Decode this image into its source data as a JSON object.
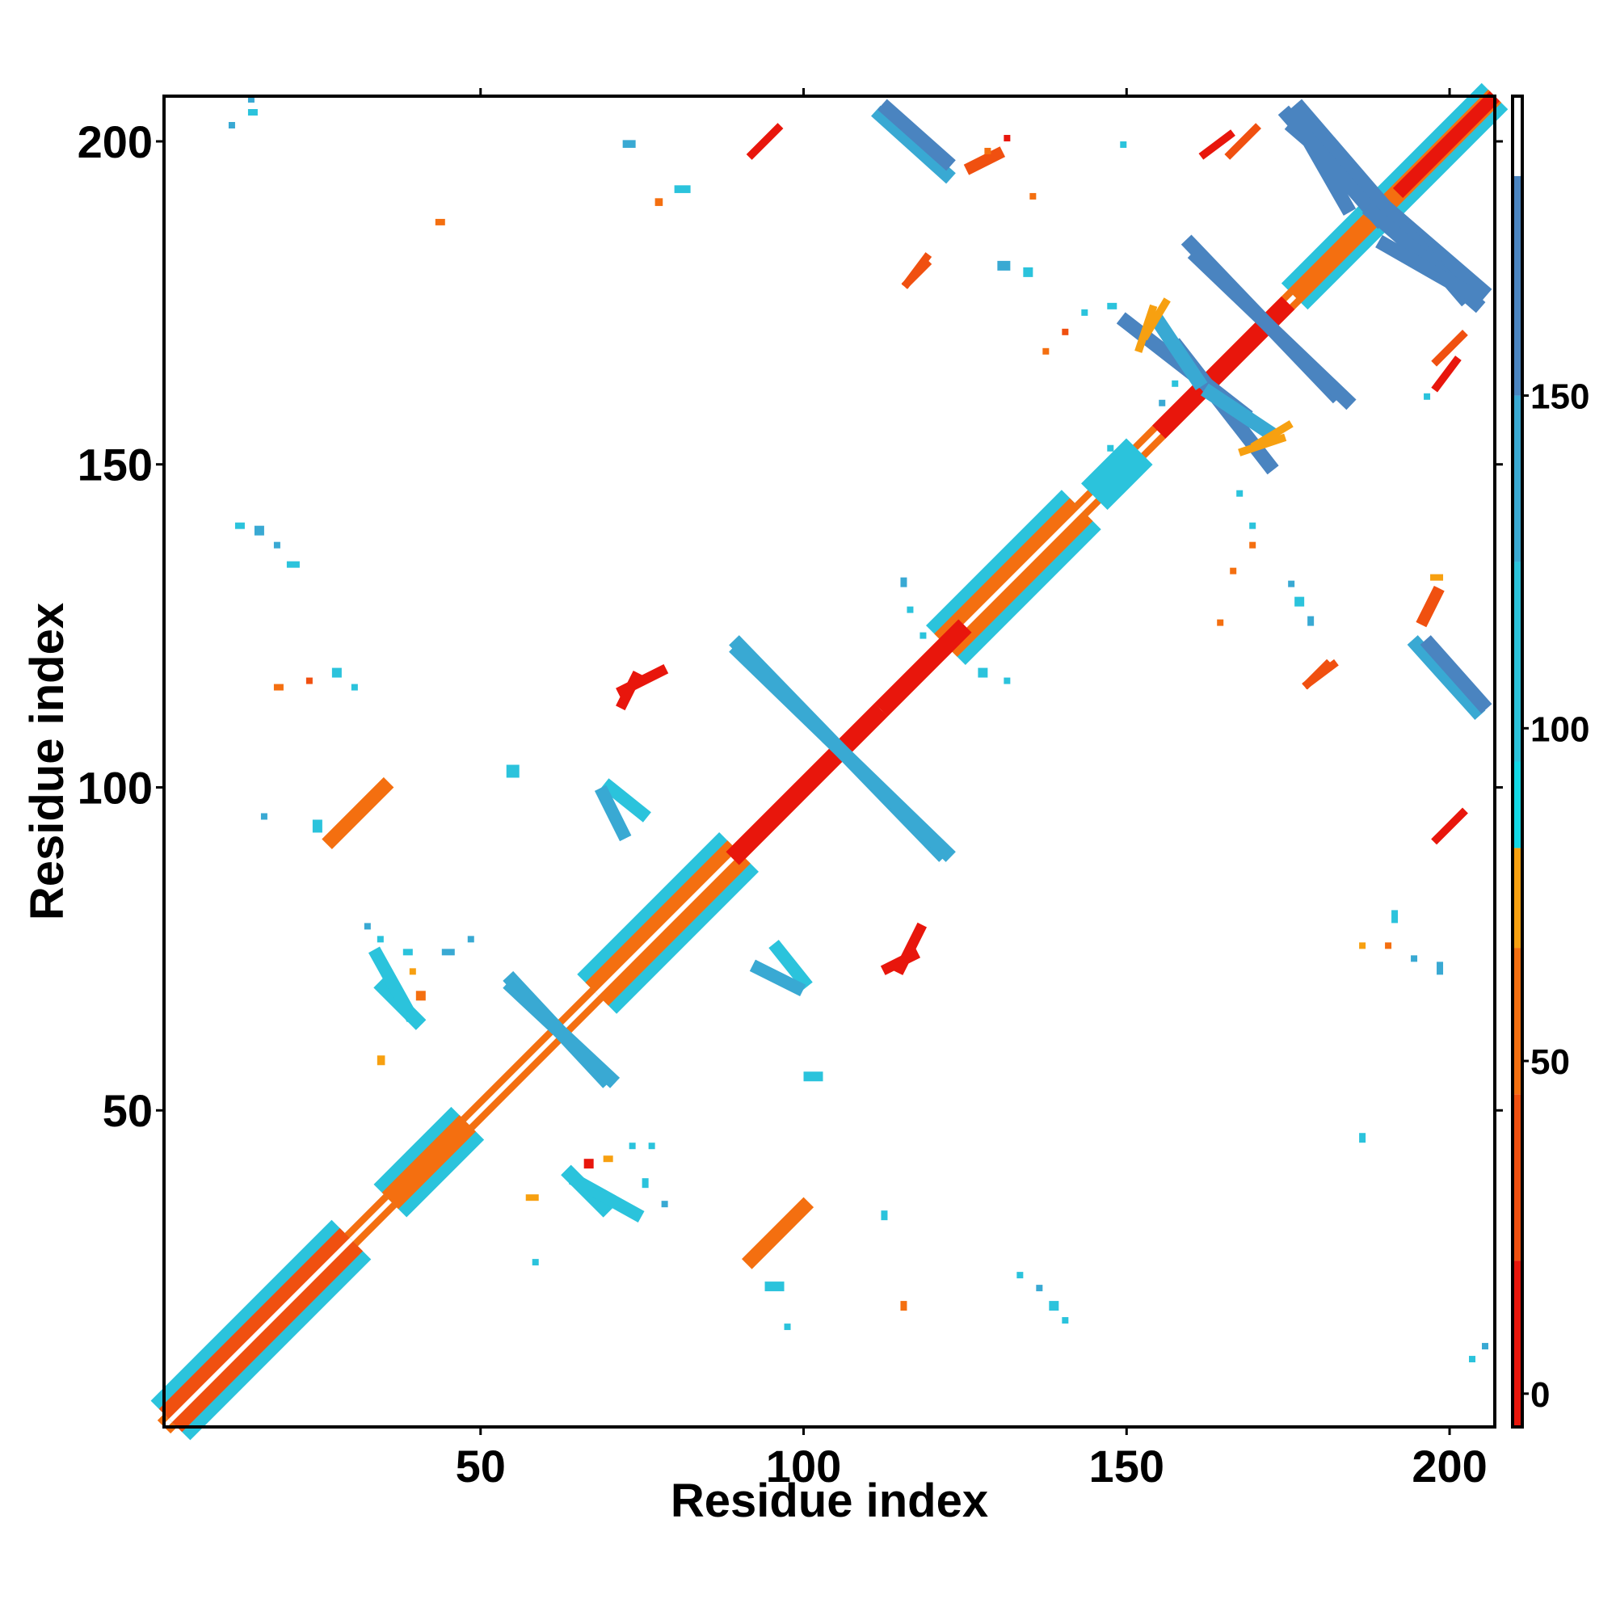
{
  "chart_data": {
    "type": "heatmap",
    "title": "",
    "xlabel": "Residue index",
    "ylabel": "Residue index",
    "xlim": [
      1,
      207
    ],
    "ylim": [
      1,
      207
    ],
    "x_ticks": [
      50,
      100,
      150,
      200
    ],
    "y_ticks": [
      50,
      100,
      150,
      200
    ],
    "colorbar": {
      "ticks": [
        0,
        50,
        100,
        150
      ],
      "range": [
        -5,
        195
      ],
      "bands": [
        {
          "from": -5,
          "to": 20,
          "color": "#e8160c"
        },
        {
          "from": 20,
          "to": 45,
          "color": "#f05010"
        },
        {
          "from": 45,
          "to": 67,
          "color": "#f46f10"
        },
        {
          "from": 67,
          "to": 82,
          "color": "#f7a010"
        },
        {
          "from": 82,
          "to": 95,
          "color": "#12d8e6"
        },
        {
          "from": 95,
          "to": 125,
          "color": "#2bc3dc"
        },
        {
          "from": 125,
          "to": 150,
          "color": "#39a9d3"
        },
        {
          "from": 150,
          "to": 183,
          "color": "#4a84c0"
        },
        {
          "from": 183,
          "to": 195,
          "color": "#ffffff"
        }
      ]
    },
    "features": [
      {
        "kind": "diag",
        "start": 1,
        "end": 207,
        "width": 4,
        "color": "#f46f10"
      },
      {
        "kind": "diag",
        "start": 1,
        "end": 207,
        "width": 1,
        "color": "#ffffff"
      },
      {
        "kind": "diag",
        "start": 2,
        "end": 30,
        "width": 12,
        "color": "#2bc3dc"
      },
      {
        "kind": "diag",
        "start": 2,
        "end": 30,
        "width": 7,
        "color": "#f05010"
      },
      {
        "kind": "diag",
        "start": 2,
        "end": 30,
        "width": 1,
        "color": "#ffffff"
      },
      {
        "kind": "diag",
        "start": 36,
        "end": 48,
        "width": 10,
        "color": "#2bc3dc"
      },
      {
        "kind": "diag",
        "start": 36,
        "end": 48,
        "width": 5,
        "color": "#f46f10"
      },
      {
        "kind": "diag",
        "start": 68,
        "end": 90,
        "width": 12,
        "color": "#2bc3dc"
      },
      {
        "kind": "diag",
        "start": 68,
        "end": 90,
        "width": 7,
        "color": "#f46f10"
      },
      {
        "kind": "diag",
        "start": 68,
        "end": 90,
        "width": 1,
        "color": "#ffffff"
      },
      {
        "kind": "diag",
        "start": 89,
        "end": 112,
        "width": 4,
        "color": "#e8160c"
      },
      {
        "kind": "diag",
        "start": 122,
        "end": 143,
        "width": 12,
        "color": "#2bc3dc"
      },
      {
        "kind": "diag",
        "start": 122,
        "end": 143,
        "width": 7,
        "color": "#f46f10"
      },
      {
        "kind": "diag",
        "start": 122,
        "end": 143,
        "width": 1,
        "color": "#ffffff"
      },
      {
        "kind": "diag",
        "start": 112,
        "end": 125,
        "width": 4,
        "color": "#e8160c"
      },
      {
        "kind": "diag",
        "start": 145,
        "end": 152,
        "width": 8,
        "color": "#2bc3dc"
      },
      {
        "kind": "diag",
        "start": 155,
        "end": 175,
        "width": 4,
        "color": "#e8160c"
      },
      {
        "kind": "diag",
        "start": 176,
        "end": 207,
        "width": 8,
        "color": "#2bc3dc"
      },
      {
        "kind": "diag",
        "start": 176,
        "end": 207,
        "width": 4,
        "color": "#f46f10"
      },
      {
        "kind": "diag",
        "start": 192,
        "end": 207,
        "width": 3,
        "color": "#e8160c"
      },
      {
        "kind": "anti",
        "x1": 90,
        "y1": 122,
        "x2": 121,
        "y2": 90,
        "width": 2.2,
        "color": "#39a9d3"
      },
      {
        "kind": "anti",
        "x1": 55,
        "y1": 70,
        "x2": 69,
        "y2": 55,
        "width": 2.2,
        "color": "#39a9d3"
      },
      {
        "kind": "anti",
        "x1": 158,
        "y1": 168,
        "x2": 172,
        "y2": 150,
        "width": 2.2,
        "color": "#4a84c0"
      },
      {
        "kind": "anti",
        "x1": 150,
        "y1": 172,
        "x2": 168,
        "y2": 158,
        "width": 2.2,
        "color": "#4a84c0"
      },
      {
        "kind": "anti",
        "x1": 160,
        "y1": 184,
        "x2": 182,
        "y2": 161,
        "width": 2.2,
        "color": "#4a84c0"
      },
      {
        "kind": "anti",
        "x1": 176,
        "y1": 202,
        "x2": 205,
        "y2": 177,
        "width": 2.2,
        "color": "#4a84c0"
      },
      {
        "kind": "anti",
        "x1": 175,
        "y1": 204,
        "x2": 189,
        "y2": 188,
        "width": 2.2,
        "color": "#4a84c0"
      },
      {
        "kind": "anti",
        "x1": 112,
        "y1": 204,
        "x2": 122,
        "y2": 195,
        "width": 2.2,
        "color": "#39a9d3"
      },
      {
        "kind": "anti",
        "x1": 197,
        "y1": 122,
        "x2": 205,
        "y2": 113,
        "width": 2.2,
        "color": "#4a84c0"
      },
      {
        "kind": "anti",
        "x1": 190,
        "y1": 184,
        "x2": 204,
        "y2": 176,
        "width": 2.2,
        "color": "#4a84c0"
      },
      {
        "kind": "anti",
        "x1": 155,
        "y1": 172,
        "x2": 161,
        "y2": 163,
        "width": 2.2,
        "color": "#39a9d3"
      },
      {
        "kind": "par",
        "x1": 27,
        "y1": 92,
        "x2": 35,
        "y2": 100,
        "width": 2.2,
        "color": "#f46f10"
      },
      {
        "kind": "par",
        "x1": 92,
        "y1": 27,
        "x2": 100,
        "y2": 35,
        "width": 2.2,
        "color": "#f46f10"
      },
      {
        "kind": "par",
        "x1": 35,
        "y1": 69,
        "x2": 40,
        "y2": 64,
        "width": 2.2,
        "color": "#2bc3dc"
      },
      {
        "kind": "par",
        "x1": 64,
        "y1": 40,
        "x2": 69,
        "y2": 35,
        "width": 2.2,
        "color": "#2bc3dc"
      },
      {
        "kind": "par",
        "x1": 70,
        "y1": 100,
        "x2": 75,
        "y2": 96,
        "width": 2,
        "color": "#2bc3dc"
      },
      {
        "kind": "par",
        "x1": 93,
        "y1": 72,
        "x2": 99,
        "y2": 69,
        "width": 2,
        "color": "#39a9d3"
      },
      {
        "kind": "par",
        "x1": 72,
        "y1": 113,
        "x2": 74,
        "y2": 117,
        "width": 1.6,
        "color": "#e8160c"
      },
      {
        "kind": "par",
        "x1": 115,
        "y1": 72,
        "x2": 118,
        "y2": 78,
        "width": 1.6,
        "color": "#e8160c"
      },
      {
        "kind": "par",
        "x1": 92,
        "y1": 198,
        "x2": 96,
        "y2": 202,
        "width": 1.2,
        "color": "#f05010"
      },
      {
        "kind": "par",
        "x1": 198,
        "y1": 92,
        "x2": 202,
        "y2": 96,
        "width": 1.2,
        "color": "#e8160c"
      },
      {
        "kind": "par",
        "x1": 116,
        "y1": 178,
        "x2": 119,
        "y2": 182,
        "width": 1.2,
        "color": "#f05010"
      },
      {
        "kind": "par",
        "x1": 178,
        "y1": 116,
        "x2": 181,
        "y2": 119,
        "width": 1.2,
        "color": "#f05010"
      },
      {
        "kind": "par",
        "x1": 196,
        "y1": 126,
        "x2": 198,
        "y2": 130,
        "width": 1.8,
        "color": "#f05010"
      },
      {
        "kind": "par",
        "x1": 198,
        "y1": 162,
        "x2": 201,
        "y2": 166,
        "width": 1.2,
        "color": "#e8160c"
      },
      {
        "kind": "par",
        "x1": 166,
        "y1": 198,
        "x2": 170,
        "y2": 202,
        "width": 1.2,
        "color": "#f05010"
      },
      {
        "kind": "par",
        "x1": 170,
        "y1": 153,
        "x2": 175,
        "y2": 156,
        "width": 1.2,
        "color": "#f7a010"
      },
      {
        "kind": "par",
        "x1": 152,
        "y1": 168,
        "x2": 154,
        "y2": 174,
        "width": 1.2,
        "color": "#f7a010"
      },
      {
        "kind": "par",
        "x1": 65,
        "y1": 39,
        "x2": 74,
        "y2": 34,
        "width": 2,
        "color": "#2bc3dc"
      },
      {
        "kind": "blob",
        "x": 54,
        "y": 101.5,
        "w": 2,
        "h": 2,
        "color": "#2bc3dc"
      },
      {
        "kind": "blob",
        "x": 100,
        "y": 54.5,
        "w": 3,
        "h": 1.5,
        "color": "#2bc3dc"
      },
      {
        "kind": "blob",
        "x": 43,
        "y": 187,
        "w": 1.5,
        "h": 1,
        "color": "#f46f10"
      },
      {
        "kind": "blob",
        "x": 186,
        "y": 45,
        "w": 1,
        "h": 1.5,
        "color": "#2bc3dc"
      },
      {
        "kind": "blob",
        "x": 34,
        "y": 57,
        "w": 1.2,
        "h": 1.5,
        "color": "#f7a010"
      },
      {
        "kind": "blob",
        "x": 57,
        "y": 36,
        "w": 2,
        "h": 1,
        "color": "#f7a010"
      },
      {
        "kind": "blob",
        "x": 94,
        "y": 22,
        "w": 3,
        "h": 1.5,
        "color": "#2bc3dc"
      },
      {
        "kind": "blob",
        "x": 115,
        "y": 19,
        "w": 1,
        "h": 1.5,
        "color": "#f46f10"
      },
      {
        "kind": "blob",
        "x": 14,
        "y": 204,
        "w": 1.5,
        "h": 1,
        "color": "#2bc3dc"
      },
      {
        "kind": "blob",
        "x": 11,
        "y": 202,
        "w": 1,
        "h": 1,
        "color": "#39a9d3"
      },
      {
        "kind": "blob",
        "x": 72,
        "y": 199,
        "w": 2,
        "h": 1.2,
        "color": "#39a9d3"
      },
      {
        "kind": "blob",
        "x": 80,
        "y": 192,
        "w": 2.5,
        "h": 1.2,
        "color": "#2bc3dc"
      },
      {
        "kind": "blob",
        "x": 77,
        "y": 190,
        "w": 1.2,
        "h": 1.2,
        "color": "#f46f10"
      },
      {
        "kind": "blob",
        "x": 130,
        "y": 180,
        "w": 2,
        "h": 1.5,
        "color": "#39a9d3"
      },
      {
        "kind": "blob",
        "x": 134,
        "y": 179,
        "w": 1.5,
        "h": 1.5,
        "color": "#2bc3dc"
      },
      {
        "kind": "blob",
        "x": 12,
        "y": 140,
        "w": 1.5,
        "h": 1,
        "color": "#2bc3dc"
      },
      {
        "kind": "blob",
        "x": 15,
        "y": 139,
        "w": 1.5,
        "h": 1.5,
        "color": "#39a9d3"
      },
      {
        "kind": "blob",
        "x": 20,
        "y": 134,
        "w": 2,
        "h": 1,
        "color": "#2bc3dc"
      },
      {
        "kind": "blob",
        "x": 18,
        "y": 137,
        "w": 1,
        "h": 1,
        "color": "#39a9d3"
      },
      {
        "kind": "blob",
        "x": 27,
        "y": 117,
        "w": 1.5,
        "h": 1.5,
        "color": "#2bc3dc"
      },
      {
        "kind": "blob",
        "x": 30,
        "y": 115,
        "w": 1,
        "h": 1,
        "color": "#2bc3dc"
      },
      {
        "kind": "blob",
        "x": 18,
        "y": 115,
        "w": 1.5,
        "h": 1,
        "color": "#f46f10"
      },
      {
        "kind": "blob",
        "x": 23,
        "y": 116,
        "w": 1,
        "h": 1,
        "color": "#f05010"
      },
      {
        "kind": "blob",
        "x": 16,
        "y": 95,
        "w": 1,
        "h": 1,
        "color": "#39a9d3"
      },
      {
        "kind": "blob",
        "x": 24,
        "y": 93,
        "w": 1.5,
        "h": 2,
        "color": "#2bc3dc"
      },
      {
        "kind": "blob",
        "x": 32,
        "y": 78,
        "w": 1,
        "h": 1,
        "color": "#39a9d3"
      },
      {
        "kind": "blob",
        "x": 34,
        "y": 76,
        "w": 1,
        "h": 1,
        "color": "#2bc3dc"
      },
      {
        "kind": "blob",
        "x": 44,
        "y": 74,
        "w": 2,
        "h": 1,
        "color": "#39a9d3"
      },
      {
        "kind": "blob",
        "x": 48,
        "y": 76,
        "w": 1,
        "h": 1,
        "color": "#39a9d3"
      },
      {
        "kind": "blob",
        "x": 40,
        "y": 67,
        "w": 1.5,
        "h": 1.5,
        "color": "#f46f10"
      },
      {
        "kind": "blob",
        "x": 39,
        "y": 71,
        "w": 1,
        "h": 1,
        "color": "#f7a010"
      },
      {
        "kind": "blob",
        "x": 38,
        "y": 74,
        "w": 1.5,
        "h": 1,
        "color": "#2bc3dc"
      },
      {
        "kind": "blob",
        "x": 112,
        "y": 33,
        "w": 1,
        "h": 1.5,
        "color": "#2bc3dc"
      },
      {
        "kind": "blob",
        "x": 133,
        "y": 24,
        "w": 1,
        "h": 1,
        "color": "#2bc3dc"
      },
      {
        "kind": "blob",
        "x": 136,
        "y": 22,
        "w": 1,
        "h": 1,
        "color": "#39a9d3"
      },
      {
        "kind": "blob",
        "x": 138,
        "y": 19,
        "w": 1.5,
        "h": 1.5,
        "color": "#2bc3dc"
      },
      {
        "kind": "blob",
        "x": 140,
        "y": 17,
        "w": 1,
        "h": 1,
        "color": "#2bc3dc"
      },
      {
        "kind": "blob",
        "x": 75,
        "y": 38,
        "w": 1,
        "h": 1.5,
        "color": "#2bc3dc"
      },
      {
        "kind": "blob",
        "x": 78,
        "y": 35,
        "w": 1,
        "h": 1,
        "color": "#39a9d3"
      },
      {
        "kind": "blob",
        "x": 73,
        "y": 44,
        "w": 1,
        "h": 1,
        "color": "#2bc3dc"
      },
      {
        "kind": "blob",
        "x": 76,
        "y": 44,
        "w": 1,
        "h": 1,
        "color": "#2bc3dc"
      },
      {
        "kind": "blob",
        "x": 69,
        "y": 42,
        "w": 1.5,
        "h": 1,
        "color": "#f7a010"
      },
      {
        "kind": "blob",
        "x": 66,
        "y": 41,
        "w": 1.5,
        "h": 1.5,
        "color": "#e8160c"
      },
      {
        "kind": "blob",
        "x": 115,
        "y": 131,
        "w": 1,
        "h": 1.5,
        "color": "#39a9d3"
      },
      {
        "kind": "blob",
        "x": 116,
        "y": 127,
        "w": 1,
        "h": 1,
        "color": "#2bc3dc"
      },
      {
        "kind": "blob",
        "x": 127,
        "y": 117,
        "w": 1.5,
        "h": 1.5,
        "color": "#2bc3dc"
      },
      {
        "kind": "blob",
        "x": 131,
        "y": 116,
        "w": 1,
        "h": 1,
        "color": "#2bc3dc"
      },
      {
        "kind": "blob",
        "x": 118,
        "y": 123,
        "w": 1,
        "h": 1,
        "color": "#2bc3dc"
      },
      {
        "kind": "blob",
        "x": 176,
        "y": 128,
        "w": 1.5,
        "h": 1.5,
        "color": "#2bc3dc"
      },
      {
        "kind": "blob",
        "x": 178,
        "y": 125,
        "w": 1,
        "h": 1.5,
        "color": "#39a9d3"
      },
      {
        "kind": "blob",
        "x": 175,
        "y": 131,
        "w": 1,
        "h": 1,
        "color": "#39a9d3"
      },
      {
        "kind": "blob",
        "x": 167,
        "y": 145,
        "w": 1,
        "h": 1,
        "color": "#2bc3dc"
      },
      {
        "kind": "blob",
        "x": 169,
        "y": 140,
        "w": 1,
        "h": 1,
        "color": "#2bc3dc"
      },
      {
        "kind": "blob",
        "x": 169,
        "y": 137,
        "w": 1,
        "h": 1,
        "color": "#f46f10"
      },
      {
        "kind": "blob",
        "x": 166,
        "y": 133,
        "w": 1,
        "h": 1,
        "color": "#f46f10"
      },
      {
        "kind": "blob",
        "x": 164,
        "y": 125,
        "w": 1,
        "h": 1,
        "color": "#f46f10"
      },
      {
        "kind": "blob",
        "x": 197,
        "y": 132,
        "w": 2,
        "h": 1,
        "color": "#f7a010"
      },
      {
        "kind": "blob",
        "x": 191,
        "y": 79,
        "w": 1,
        "h": 2,
        "color": "#2bc3dc"
      },
      {
        "kind": "blob",
        "x": 186,
        "y": 75,
        "w": 1,
        "h": 1,
        "color": "#f7a010"
      },
      {
        "kind": "blob",
        "x": 190,
        "y": 75,
        "w": 1,
        "h": 1,
        "color": "#f46f10"
      },
      {
        "kind": "blob",
        "x": 194,
        "y": 73,
        "w": 1,
        "h": 1,
        "color": "#39a9d3"
      },
      {
        "kind": "blob",
        "x": 198,
        "y": 71,
        "w": 1,
        "h": 2,
        "color": "#39a9d3"
      },
      {
        "kind": "blob",
        "x": 203,
        "y": 11,
        "w": 1,
        "h": 1,
        "color": "#2bc3dc"
      },
      {
        "kind": "blob",
        "x": 205,
        "y": 13,
        "w": 1,
        "h": 1,
        "color": "#39a9d3"
      },
      {
        "kind": "blob",
        "x": 147,
        "y": 174,
        "w": 1.5,
        "h": 1,
        "color": "#2bc3dc"
      },
      {
        "kind": "blob",
        "x": 137,
        "y": 167,
        "w": 1,
        "h": 1,
        "color": "#f46f10"
      },
      {
        "kind": "blob",
        "x": 140,
        "y": 170,
        "w": 1,
        "h": 1,
        "color": "#f05010"
      },
      {
        "kind": "blob",
        "x": 143,
        "y": 173,
        "w": 1,
        "h": 1,
        "color": "#2bc3dc"
      },
      {
        "kind": "blob",
        "x": 147,
        "y": 152,
        "w": 1,
        "h": 1,
        "color": "#2bc3dc"
      },
      {
        "kind": "blob",
        "x": 155,
        "y": 159,
        "w": 1,
        "h": 1,
        "color": "#39a9d3"
      },
      {
        "kind": "blob",
        "x": 157,
        "y": 162,
        "w": 1,
        "h": 1,
        "color": "#2bc3dc"
      },
      {
        "kind": "blob",
        "x": 196,
        "y": 160,
        "w": 1,
        "h": 1,
        "color": "#2bc3dc"
      },
      {
        "kind": "blob",
        "x": 149,
        "y": 199,
        "w": 1,
        "h": 1,
        "color": "#2bc3dc"
      },
      {
        "kind": "blob",
        "x": 131,
        "y": 200,
        "w": 1,
        "h": 1,
        "color": "#e8160c"
      },
      {
        "kind": "blob",
        "x": 128,
        "y": 198,
        "w": 1,
        "h": 1,
        "color": "#f46f10"
      },
      {
        "kind": "blob",
        "x": 135,
        "y": 191,
        "w": 1,
        "h": 1,
        "color": "#f46f10"
      },
      {
        "kind": "blob",
        "x": 14,
        "y": 206,
        "w": 1,
        "h": 1,
        "color": "#39a9d3"
      },
      {
        "kind": "blob",
        "x": 58,
        "y": 26,
        "w": 1,
        "h": 1,
        "color": "#2bc3dc"
      },
      {
        "kind": "blob",
        "x": 97,
        "y": 16,
        "w": 1,
        "h": 1,
        "color": "#2bc3dc"
      }
    ]
  }
}
